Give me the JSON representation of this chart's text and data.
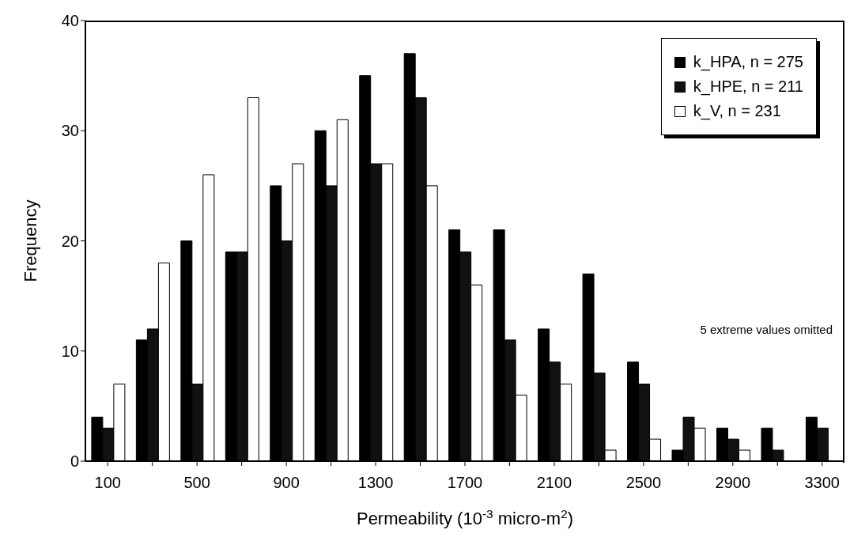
{
  "chart_data": {
    "type": "bar",
    "xlabel": "Permeability (10$^{-3}$ micro-m$^{2}$)",
    "ylabel": "Frequency",
    "categories": [
      "100",
      null,
      "500",
      null,
      "900",
      null,
      "1300",
      null,
      "1700",
      null,
      "2100",
      null,
      "2500",
      null,
      "2900",
      null,
      "3300"
    ],
    "series": [
      {
        "name": "k_HPA, n = 275",
        "color": "#000000",
        "values": [
          4,
          11,
          20,
          19,
          25,
          30,
          35,
          37,
          21,
          21,
          12,
          17,
          9,
          1,
          3,
          3,
          4
        ]
      },
      {
        "name": "k_HPE, n = 211",
        "color": "#111111",
        "values": [
          3,
          12,
          7,
          19,
          20,
          25,
          27,
          33,
          19,
          11,
          9,
          8,
          7,
          4,
          2,
          1,
          3
        ]
      },
      {
        "name": "k_V, n = 231",
        "color": "#ffffff",
        "values": [
          7,
          18,
          26,
          33,
          27,
          31,
          27,
          25,
          16,
          6,
          7,
          1,
          2,
          3,
          1,
          0,
          0
        ]
      }
    ],
    "ylim": [
      0,
      40
    ],
    "yticks": [
      0,
      10,
      20,
      30,
      40
    ],
    "legend": "top right",
    "annotations": [
      "5 extreme values omitted"
    ]
  }
}
